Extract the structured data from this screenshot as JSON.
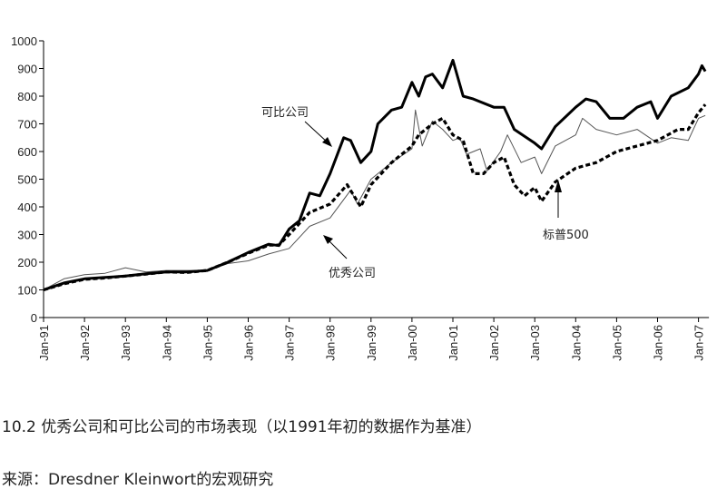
{
  "chart_data": {
    "type": "line",
    "title": "",
    "xlabel": "",
    "ylabel": "",
    "ylim": [
      0,
      1000
    ],
    "yticks": [
      0,
      100,
      200,
      300,
      400,
      500,
      600,
      700,
      800,
      900,
      1000
    ],
    "xlim": [
      "1991-01",
      "2007-03"
    ],
    "xtick_labels": [
      "Jan-91",
      "Jan-92",
      "Jan-93",
      "Jan-94",
      "Jan-95",
      "Jan-96",
      "Jan-97",
      "Jan-98",
      "Jan-99",
      "Jan-00",
      "Jan-01",
      "Jan-02",
      "Jan-03",
      "Jan-04",
      "Jan-05",
      "Jan-06",
      "Jan-07"
    ],
    "grid": false,
    "legend": "none (inline annotations with arrows)",
    "series": [
      {
        "name": "可比公司",
        "style": "thick solid",
        "color": "#000000",
        "points": [
          [
            "1991-01",
            100
          ],
          [
            "1991-07",
            125
          ],
          [
            "1992-01",
            140
          ],
          [
            "1992-07",
            145
          ],
          [
            "1993-01",
            150
          ],
          [
            "1993-07",
            158
          ],
          [
            "1994-01",
            165
          ],
          [
            "1994-07",
            165
          ],
          [
            "1995-01",
            170
          ],
          [
            "1995-07",
            200
          ],
          [
            "1996-01",
            235
          ],
          [
            "1996-07",
            265
          ],
          [
            "1996-10",
            260
          ],
          [
            "1997-01",
            320
          ],
          [
            "1997-04",
            350
          ],
          [
            "1997-07",
            450
          ],
          [
            "1997-10",
            440
          ],
          [
            "1998-01",
            520
          ],
          [
            "1998-05",
            650
          ],
          [
            "1998-07",
            640
          ],
          [
            "1998-10",
            560
          ],
          [
            "1999-01",
            600
          ],
          [
            "1999-03",
            700
          ],
          [
            "1999-07",
            750
          ],
          [
            "1999-10",
            760
          ],
          [
            "2000-01",
            850
          ],
          [
            "2000-03",
            800
          ],
          [
            "2000-05",
            870
          ],
          [
            "2000-07",
            880
          ],
          [
            "2000-10",
            830
          ],
          [
            "2001-01",
            930
          ],
          [
            "2001-04",
            800
          ],
          [
            "2001-07",
            790
          ],
          [
            "2002-01",
            760
          ],
          [
            "2002-04",
            760
          ],
          [
            "2002-07",
            680
          ],
          [
            "2003-01",
            630
          ],
          [
            "2003-03",
            610
          ],
          [
            "2003-07",
            690
          ],
          [
            "2004-01",
            760
          ],
          [
            "2004-04",
            790
          ],
          [
            "2004-07",
            780
          ],
          [
            "2004-11",
            720
          ],
          [
            "2005-03",
            720
          ],
          [
            "2005-07",
            760
          ],
          [
            "2005-11",
            780
          ],
          [
            "2006-01",
            720
          ],
          [
            "2006-05",
            800
          ],
          [
            "2006-10",
            830
          ],
          [
            "2007-01",
            880
          ],
          [
            "2007-02",
            910
          ],
          [
            "2007-03",
            890
          ]
        ]
      },
      {
        "name": "标普500",
        "style": "thick dashed",
        "color": "#000000",
        "points": [
          [
            "1991-01",
            100
          ],
          [
            "1991-07",
            122
          ],
          [
            "1992-01",
            138
          ],
          [
            "1992-07",
            143
          ],
          [
            "1993-01",
            150
          ],
          [
            "1993-07",
            157
          ],
          [
            "1994-01",
            165
          ],
          [
            "1994-07",
            163
          ],
          [
            "1995-01",
            170
          ],
          [
            "1995-07",
            200
          ],
          [
            "1996-01",
            232
          ],
          [
            "1996-07",
            262
          ],
          [
            "1996-10",
            262
          ],
          [
            "1997-01",
            300
          ],
          [
            "1997-07",
            380
          ],
          [
            "1998-01",
            410
          ],
          [
            "1998-06",
            480
          ],
          [
            "1998-10",
            400
          ],
          [
            "1999-01",
            480
          ],
          [
            "1999-07",
            560
          ],
          [
            "2000-01",
            620
          ],
          [
            "2000-03",
            660
          ],
          [
            "2000-07",
            700
          ],
          [
            "2000-10",
            720
          ],
          [
            "2001-01",
            660
          ],
          [
            "2001-04",
            640
          ],
          [
            "2001-07",
            520
          ],
          [
            "2001-10",
            520
          ],
          [
            "2002-01",
            560
          ],
          [
            "2002-04",
            580
          ],
          [
            "2002-07",
            480
          ],
          [
            "2002-10",
            440
          ],
          [
            "2003-01",
            470
          ],
          [
            "2003-03",
            420
          ],
          [
            "2003-07",
            490
          ],
          [
            "2004-01",
            540
          ],
          [
            "2004-07",
            560
          ],
          [
            "2005-01",
            600
          ],
          [
            "2005-07",
            620
          ],
          [
            "2006-01",
            640
          ],
          [
            "2006-07",
            680
          ],
          [
            "2006-10",
            680
          ],
          [
            "2007-01",
            740
          ],
          [
            "2007-03",
            770
          ]
        ]
      },
      {
        "name": "优秀公司",
        "style": "thin solid",
        "color": "#555555",
        "points": [
          [
            "1991-01",
            100
          ],
          [
            "1991-07",
            140
          ],
          [
            "1992-01",
            155
          ],
          [
            "1992-07",
            160
          ],
          [
            "1993-01",
            180
          ],
          [
            "1993-07",
            165
          ],
          [
            "1994-01",
            170
          ],
          [
            "1994-07",
            170
          ],
          [
            "1995-01",
            170
          ],
          [
            "1995-07",
            195
          ],
          [
            "1996-01",
            205
          ],
          [
            "1996-07",
            230
          ],
          [
            "1997-01",
            250
          ],
          [
            "1997-07",
            330
          ],
          [
            "1998-01",
            360
          ],
          [
            "1998-07",
            460
          ],
          [
            "1998-09",
            410
          ],
          [
            "1999-01",
            500
          ],
          [
            "1999-07",
            560
          ],
          [
            "2000-01",
            610
          ],
          [
            "2000-02",
            750
          ],
          [
            "2000-04",
            620
          ],
          [
            "2000-07",
            710
          ],
          [
            "2000-10",
            680
          ],
          [
            "2001-01",
            640
          ],
          [
            "2001-03",
            650
          ],
          [
            "2001-05",
            590
          ],
          [
            "2001-09",
            610
          ],
          [
            "2001-11",
            530
          ],
          [
            "2002-03",
            600
          ],
          [
            "2002-05",
            660
          ],
          [
            "2002-09",
            560
          ],
          [
            "2003-01",
            580
          ],
          [
            "2003-03",
            520
          ],
          [
            "2003-07",
            620
          ],
          [
            "2004-01",
            660
          ],
          [
            "2004-03",
            720
          ],
          [
            "2004-07",
            680
          ],
          [
            "2005-01",
            660
          ],
          [
            "2005-07",
            680
          ],
          [
            "2006-01",
            630
          ],
          [
            "2006-05",
            650
          ],
          [
            "2006-10",
            640
          ],
          [
            "2007-01",
            720
          ],
          [
            "2007-03",
            730
          ]
        ]
      }
    ],
    "annotations": [
      "可比公司",
      "优秀公司",
      "标普500"
    ]
  },
  "caption": "10.2 优秀公司和可比公司的市场表现（以1991年初的数据作为基准）",
  "source": "来源：Dresdner Kleinwort的宏观研究"
}
